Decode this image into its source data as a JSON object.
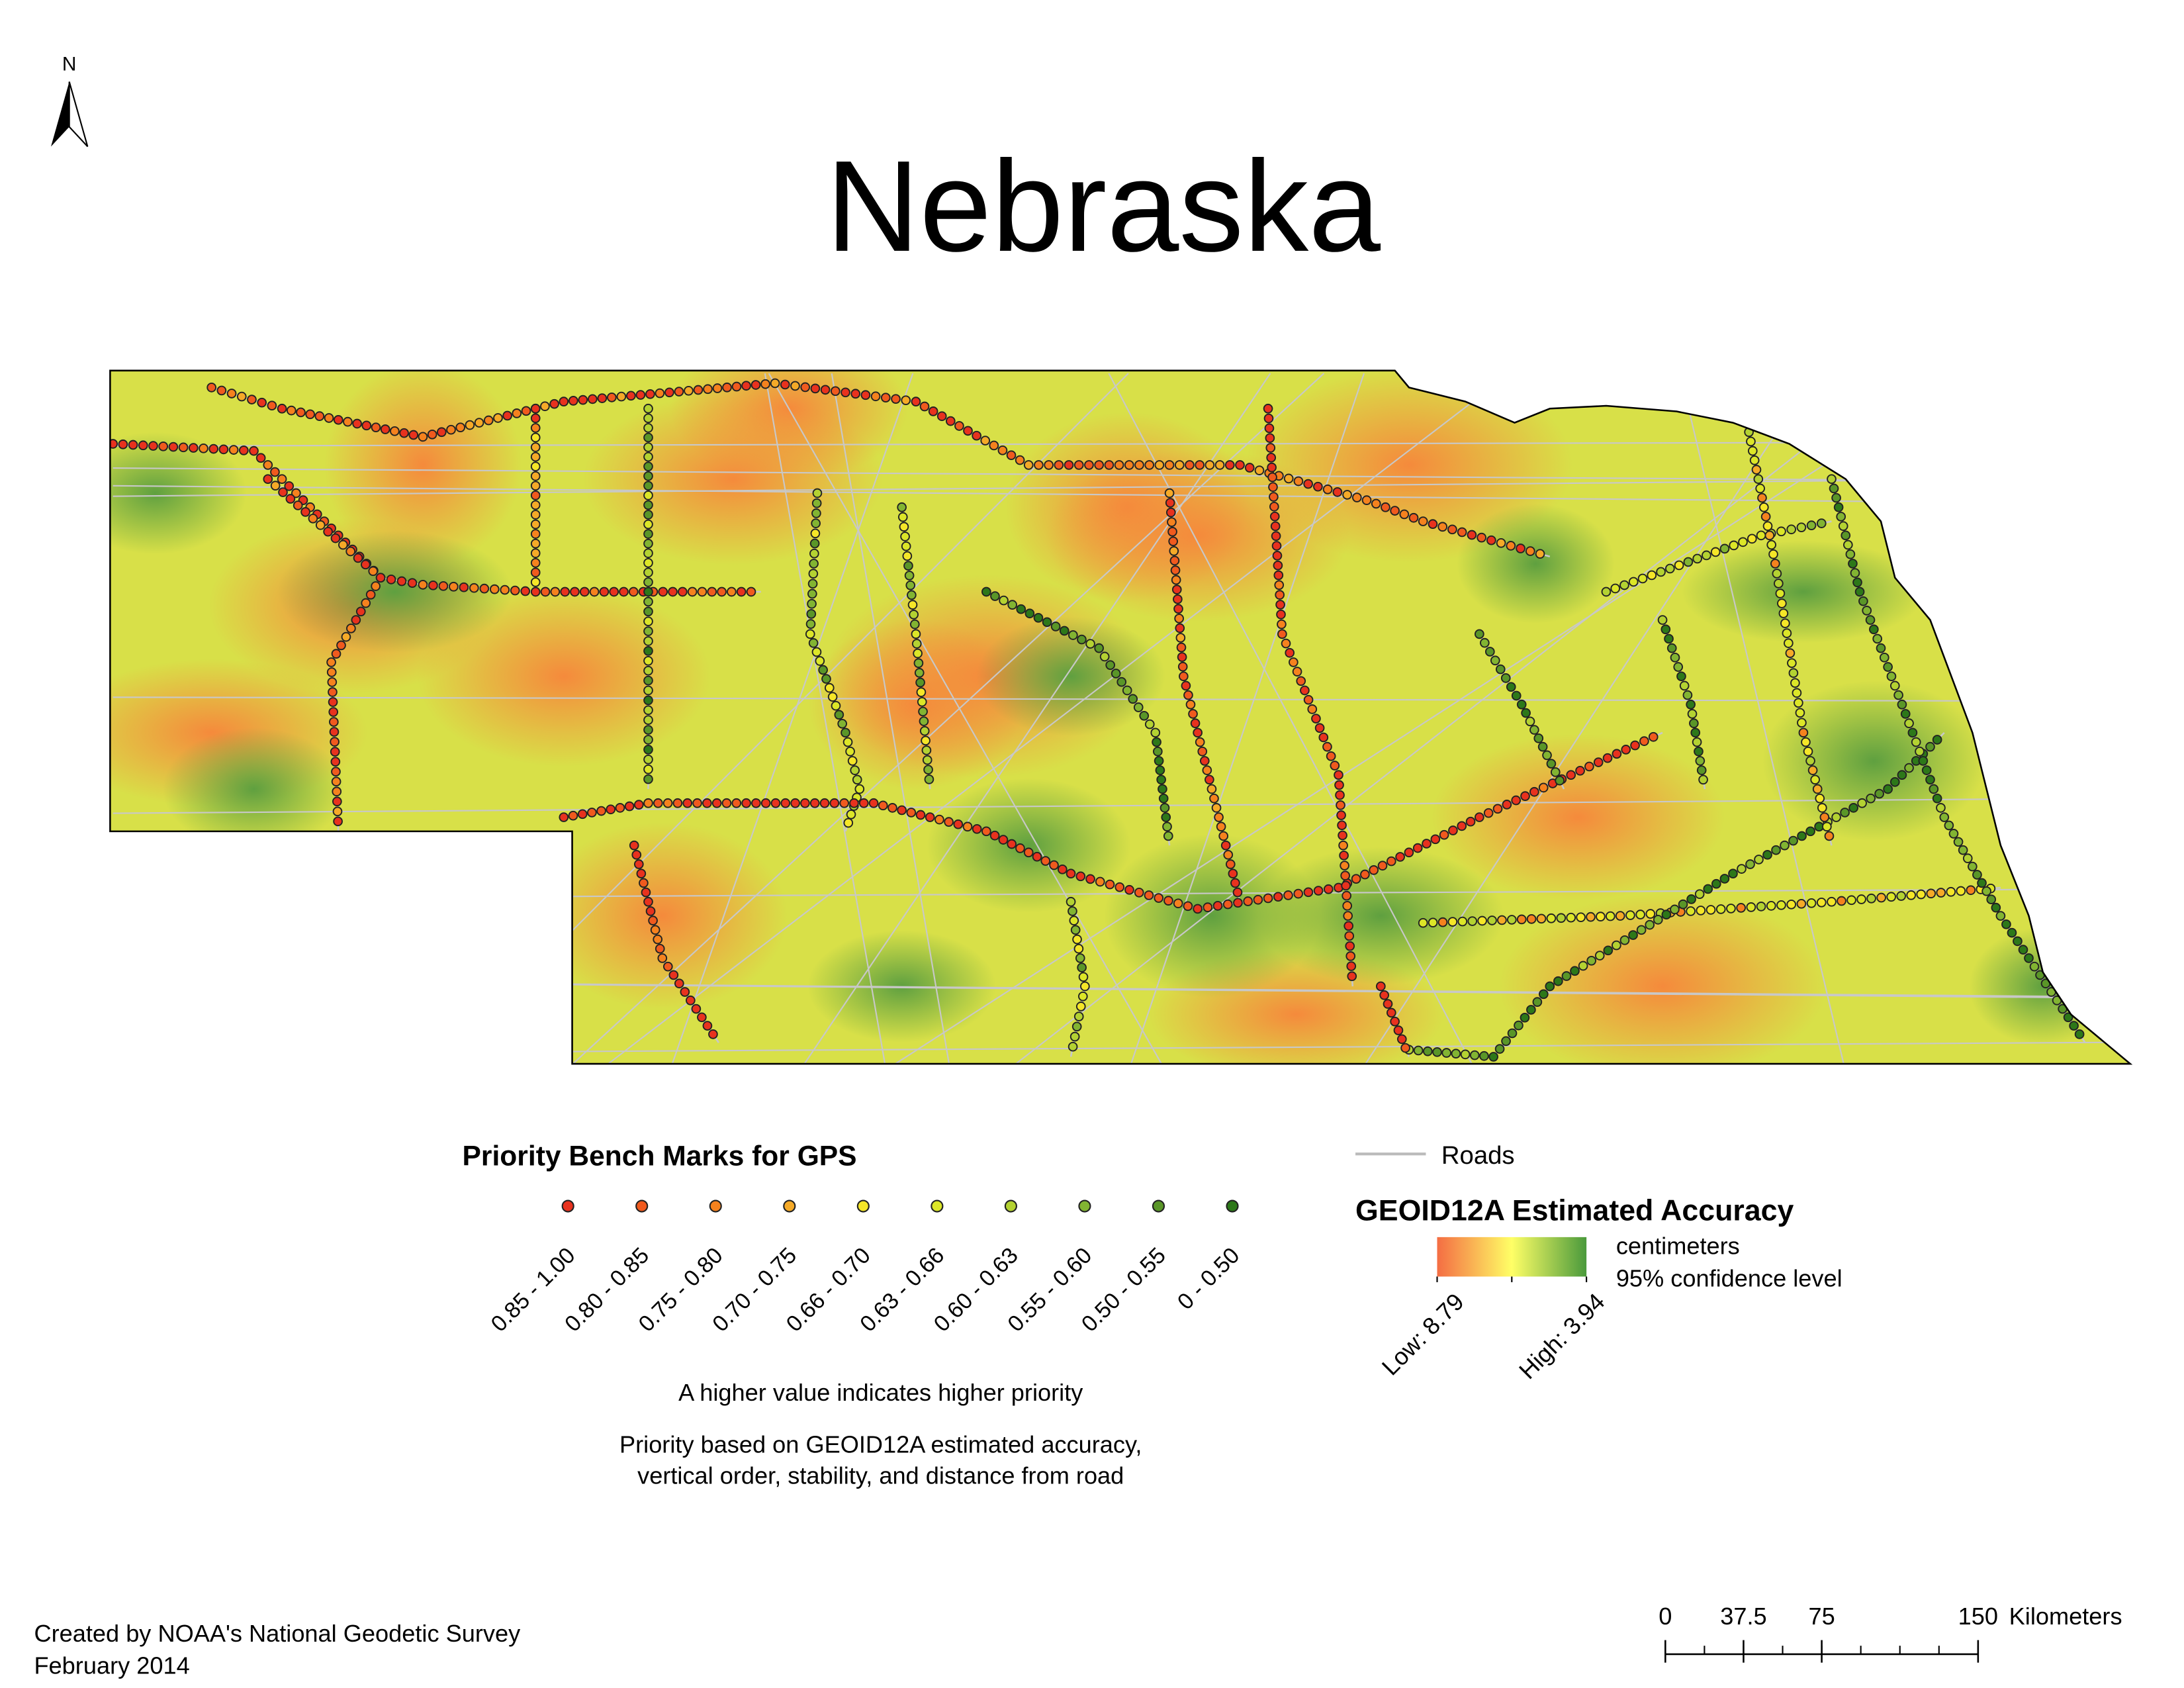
{
  "north_arrow": {
    "label": "N"
  },
  "title": "Nebraska",
  "priority_legend": {
    "title": "Priority Bench Marks for GPS",
    "classes": [
      {
        "label": "0.85 - 1.00",
        "color": "#e8321e"
      },
      {
        "label": "0.80 - 0.85",
        "color": "#f05a1e"
      },
      {
        "label": "0.75 - 0.80",
        "color": "#f5821e"
      },
      {
        "label": "0.70 - 0.75",
        "color": "#f5aa28"
      },
      {
        "label": "0.66 - 0.70",
        "color": "#f5e628"
      },
      {
        "label": "0.63 - 0.66",
        "color": "#dce628"
      },
      {
        "label": "0.60 - 0.63",
        "color": "#b4d232"
      },
      {
        "label": "0.55 - 0.60",
        "color": "#82b432"
      },
      {
        "label": "0.50 - 0.55",
        "color": "#5a9628"
      },
      {
        "label": "0 - 0.50",
        "color": "#2d7819"
      }
    ],
    "note": "A higher value indicates higher priority",
    "description": [
      "Priority based on GEOID12A estimated accuracy,",
      "vertical order, stability, and distance from road"
    ]
  },
  "roads_legend": {
    "label": "Roads"
  },
  "accuracy_legend": {
    "title": "GEOID12A Estimated Accuracy",
    "units": [
      "centimeters",
      "95% confidence level"
    ],
    "low_label": "Low: 8.79",
    "high_label": "High: 3.94"
  },
  "scale_bar": {
    "ticks": [
      0,
      37.5,
      75,
      150
    ],
    "unit": "Kilometers"
  },
  "credits": [
    "Created by NOAA's National Geodetic Survey",
    "February 2014"
  ]
}
